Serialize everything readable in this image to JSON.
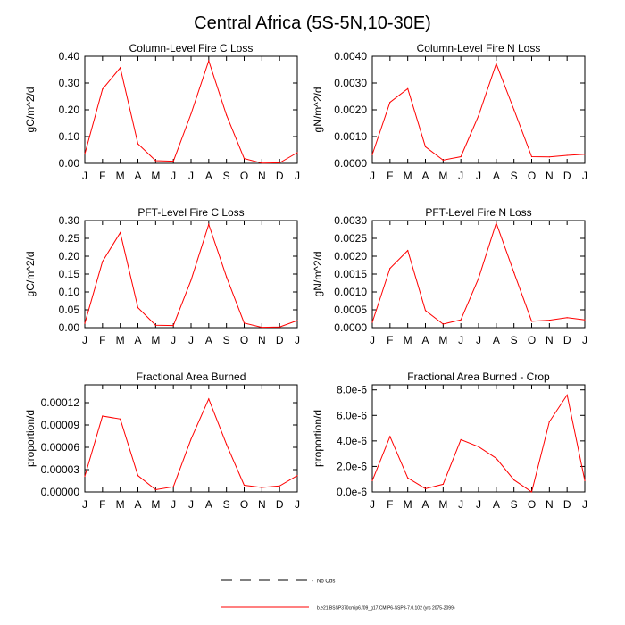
{
  "title": "Central Africa (5S-5N,10-30E)",
  "colors": {
    "series": "#ff0000",
    "axis": "#000000",
    "legend_dash": "#000000"
  },
  "legend": {
    "no_obs_label": "No Obs",
    "series_label": "b.e21.BSSP370cmip6.f09_g17.CMIP6-SSP3-7.0.102 (yrs 2075-2099)"
  },
  "chart_data": [
    {
      "type": "line",
      "title": "Column-Level Fire C Loss",
      "ylabel": "gC/m^2/d",
      "x": [
        "J",
        "F",
        "M",
        "A",
        "M",
        "J",
        "J",
        "A",
        "S",
        "O",
        "N",
        "D",
        "J"
      ],
      "ylim": [
        0,
        0.4
      ],
      "yticks": [
        0.0,
        0.1,
        0.2,
        0.3,
        0.4
      ],
      "ytick_labels": [
        "0.00",
        "0.10",
        "0.20",
        "0.30",
        "0.40"
      ],
      "series": [
        {
          "values": [
            0.035,
            0.277,
            0.357,
            0.073,
            0.01,
            0.008,
            0.185,
            0.383,
            0.18,
            0.018,
            0.001,
            0.002,
            0.04
          ]
        }
      ]
    },
    {
      "type": "line",
      "title": "Column-Level Fire N Loss",
      "ylabel": "gN/m^2/d",
      "x": [
        "J",
        "F",
        "M",
        "A",
        "M",
        "J",
        "J",
        "A",
        "S",
        "O",
        "N",
        "D",
        "J"
      ],
      "ylim": [
        0,
        0.004
      ],
      "yticks": [
        0.0,
        0.001,
        0.002,
        0.003,
        0.004
      ],
      "ytick_labels": [
        "0.0000",
        "0.0010",
        "0.0020",
        "0.0030",
        "0.0040"
      ],
      "series": [
        {
          "values": [
            0.00033,
            0.00228,
            0.00279,
            0.00062,
            0.00012,
            0.00025,
            0.00178,
            0.00372,
            0.002,
            0.00025,
            0.00024,
            0.0003,
            0.00034
          ]
        }
      ]
    },
    {
      "type": "line",
      "title": "PFT-Level Fire C Loss",
      "ylabel": "gC/m^2/d",
      "x": [
        "J",
        "F",
        "M",
        "A",
        "M",
        "J",
        "J",
        "A",
        "S",
        "O",
        "N",
        "D",
        "J"
      ],
      "ylim": [
        0,
        0.3
      ],
      "yticks": [
        0.0,
        0.05,
        0.1,
        0.15,
        0.2,
        0.25,
        0.3
      ],
      "ytick_labels": [
        "0.00",
        "0.05",
        "0.10",
        "0.15",
        "0.20",
        "0.25",
        "0.30"
      ],
      "series": [
        {
          "values": [
            0.012,
            0.185,
            0.266,
            0.056,
            0.007,
            0.006,
            0.133,
            0.289,
            0.142,
            0.013,
            0.001,
            0.002,
            0.02
          ]
        }
      ]
    },
    {
      "type": "line",
      "title": "PFT-Level Fire N Loss",
      "ylabel": "gN/m^2/d",
      "x": [
        "J",
        "F",
        "M",
        "A",
        "M",
        "J",
        "J",
        "A",
        "S",
        "O",
        "N",
        "D",
        "J"
      ],
      "ylim": [
        0,
        0.003
      ],
      "yticks": [
        0.0,
        0.0005,
        0.001,
        0.0015,
        0.002,
        0.0025,
        0.003
      ],
      "ytick_labels": [
        "0.0000",
        "0.0005",
        "0.0010",
        "0.0015",
        "0.0020",
        "0.0025",
        "0.0030"
      ],
      "series": [
        {
          "values": [
            0.00015,
            0.00166,
            0.00216,
            0.00048,
            0.0001,
            0.00022,
            0.00138,
            0.00293,
            0.00154,
            0.00018,
            0.00021,
            0.00028,
            0.00022
          ]
        }
      ]
    },
    {
      "type": "line",
      "title": "Fractional Area Burned",
      "ylabel": "proportion/d",
      "x": [
        "J",
        "F",
        "M",
        "A",
        "M",
        "J",
        "J",
        "A",
        "S",
        "O",
        "N",
        "D",
        "J"
      ],
      "ylim": [
        0,
        0.000144
      ],
      "yticks": [
        0.0,
        3e-05,
        6e-05,
        9e-05,
        0.00012
      ],
      "ytick_labels": [
        "0.00000",
        "0.00003",
        "0.00006",
        "0.00009",
        "0.00012"
      ],
      "series": [
        {
          "values": [
            2.1e-05,
            0.000102,
            9.8e-05,
            2.2e-05,
            3e-06,
            7e-06,
            7.1e-05,
            0.000125,
            6.4e-05,
            9e-06,
            6e-06,
            8e-06,
            2.2e-05
          ]
        }
      ]
    },
    {
      "type": "line",
      "title": "Fractional Area Burned - Crop",
      "ylabel": "proportion/d",
      "x": [
        "J",
        "F",
        "M",
        "A",
        "M",
        "J",
        "J",
        "A",
        "S",
        "O",
        "N",
        "D",
        "J"
      ],
      "ylim": [
        0,
        8.4e-06
      ],
      "yticks": [
        0,
        2e-06,
        4e-06,
        6e-06,
        8e-06
      ],
      "ytick_labels": [
        "0.0e-6",
        "2.0e-6",
        "4.0e-6",
        "6.0e-6",
        "8.0e-6"
      ],
      "series": [
        {
          "values": [
            8.8e-07,
            4.35e-06,
            1.1e-06,
            2.6e-07,
            6e-07,
            4.1e-06,
            3.55e-06,
            2.64e-06,
            9.4e-07,
            0.0,
            5.5e-06,
            7.6e-06,
            8.8e-07
          ]
        }
      ]
    }
  ]
}
